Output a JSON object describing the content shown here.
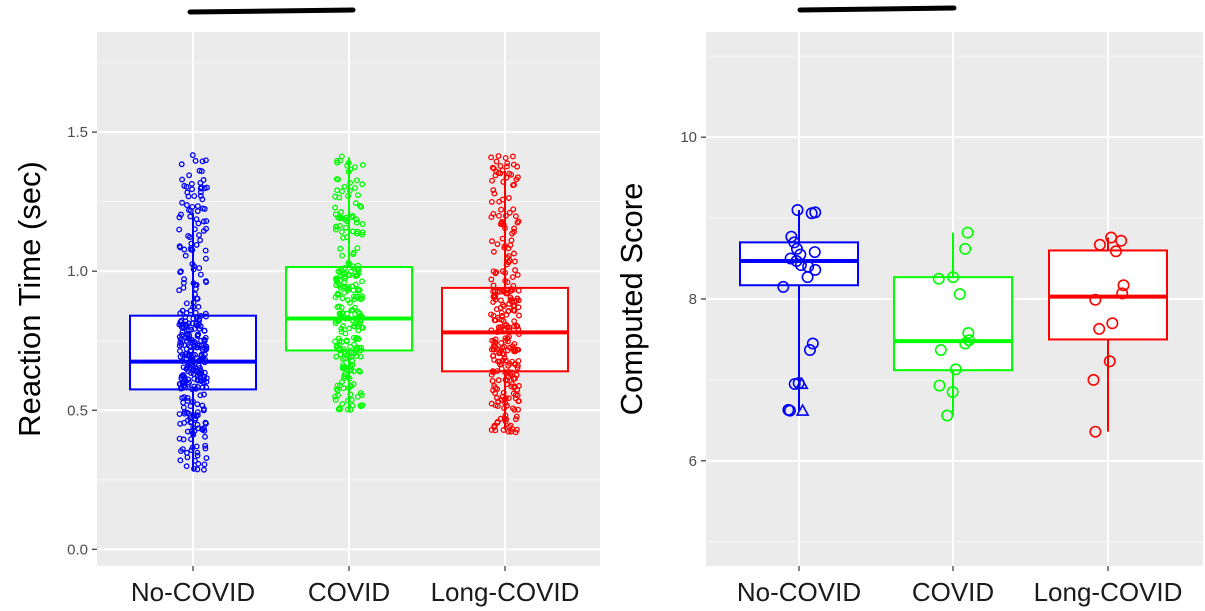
{
  "chart_data": [
    {
      "type": "box",
      "ylabel": "Reaction Time (sec)",
      "xlabel": "",
      "categories": [
        "No-COVID",
        "COVID",
        "Long-COVID"
      ],
      "ylim": [
        -0.06,
        1.86
      ],
      "yticks": [
        0.0,
        0.5,
        1.0,
        1.5
      ],
      "yticks_labels": [
        "0.0",
        "0.5",
        "1.0",
        "1.5"
      ],
      "boxes": [
        {
          "name": "No-COVID",
          "color": "#0000ff",
          "q1": 0.575,
          "median": 0.675,
          "q3": 0.84,
          "whisker_low": 0.28,
          "whisker_high": 1.21
        },
        {
          "name": "COVID",
          "color": "#00ff00",
          "q1": 0.715,
          "median": 0.83,
          "q3": 1.015,
          "whisker_low": 0.5,
          "whisker_high": 1.41
        },
        {
          "name": "Long-COVID",
          "color": "#ff0000",
          "q1": 0.64,
          "median": 0.78,
          "q3": 0.94,
          "whisker_low": 0.43,
          "whisker_high": 1.36
        }
      ],
      "point_ranges": [
        {
          "min": 0.28,
          "max": 1.42,
          "n": 320
        },
        {
          "min": 0.5,
          "max": 1.42,
          "n": 250
        },
        {
          "min": 0.42,
          "max": 1.42,
          "n": 280
        }
      ],
      "grid": true,
      "significance_bar": true
    },
    {
      "type": "box",
      "ylabel": "Computed Score",
      "xlabel": "",
      "categories": [
        "No-COVID",
        "COVID",
        "Long-COVID"
      ],
      "ylim": [
        4.7,
        11.3
      ],
      "yticks": [
        6,
        8,
        10
      ],
      "yticks_labels": [
        "6",
        "8",
        "10"
      ],
      "boxes": [
        {
          "name": "No-COVID",
          "color": "#0000ff",
          "q1": 8.17,
          "median": 8.47,
          "q3": 8.7,
          "whisker_low": 6.62,
          "whisker_high": 9.1
        },
        {
          "name": "COVID",
          "color": "#00ff00",
          "q1": 7.12,
          "median": 7.48,
          "q3": 8.27,
          "whisker_low": 6.56,
          "whisker_high": 8.82
        },
        {
          "name": "Long-COVID",
          "color": "#ff0000",
          "q1": 7.5,
          "median": 8.03,
          "q3": 8.6,
          "whisker_low": 6.36,
          "whisker_high": 8.76
        }
      ],
      "points": [
        [
          9.1,
          9.07,
          9.06,
          8.77,
          8.7,
          8.62,
          8.58,
          8.55,
          8.5,
          8.47,
          8.42,
          8.4,
          8.36,
          8.27,
          8.15,
          7.45,
          7.37,
          6.96,
          6.95,
          6.63,
          6.62
        ],
        [
          8.82,
          8.62,
          8.27,
          8.25,
          8.06,
          7.58,
          7.49,
          7.45,
          7.37,
          7.13,
          6.93,
          6.85,
          6.56
        ],
        [
          8.76,
          8.72,
          8.67,
          8.59,
          8.17,
          8.07,
          7.99,
          7.7,
          7.63,
          7.23,
          7.0,
          6.36
        ]
      ],
      "triangle_points": [
        [
          6.95,
          6.62
        ],
        [],
        []
      ],
      "grid": true,
      "significance_bar": true
    }
  ]
}
